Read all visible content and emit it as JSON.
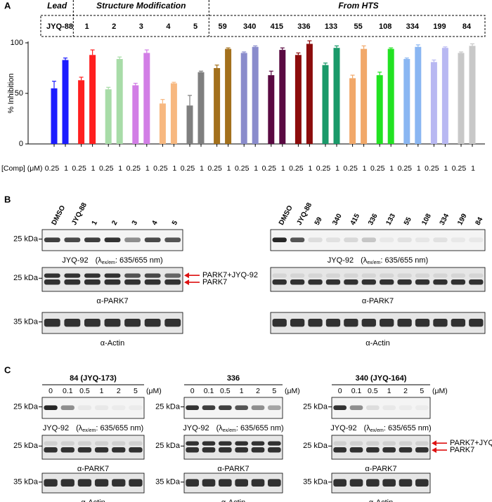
{
  "chart_data": {
    "type": "bar",
    "panel_label": "A",
    "group_labels": [
      {
        "label": "Lead",
        "color": "#000000"
      },
      {
        "label": "Structure Modification",
        "color": "#8577e0"
      },
      {
        "label": "From HTS",
        "color": "#f07ee0"
      }
    ],
    "categories": [
      "JYQ-88",
      "1",
      "2",
      "3",
      "4",
      "5",
      "59",
      "340",
      "415",
      "336",
      "133",
      "55",
      "108",
      "334",
      "199",
      "84"
    ],
    "colors": [
      "#1c1cff",
      "#ff1f1f",
      "#a8dca8",
      "#d27ee6",
      "#f7b880",
      "#7f7f7f",
      "#a3701c",
      "#8a8ccc",
      "#5a0a42",
      "#8c0c0c",
      "#1a9a6a",
      "#f1a86a",
      "#22e222",
      "#8ab6f2",
      "#b8b8f2",
      "#c8c8c8"
    ],
    "series": [
      {
        "name": "0.25",
        "values": [
          55,
          63,
          54,
          58,
          40,
          38,
          75,
          90,
          68,
          88,
          78,
          65,
          68,
          84,
          81,
          90
        ],
        "errors": [
          7,
          3,
          2,
          2,
          4,
          10,
          3,
          1,
          4,
          2,
          2,
          3,
          3,
          1,
          2,
          1
        ]
      },
      {
        "name": "1",
        "values": [
          83,
          88,
          84,
          90,
          60,
          71,
          94,
          96,
          93,
          99,
          95,
          94,
          94,
          96,
          95,
          97
        ],
        "errors": [
          2,
          5,
          2,
          3,
          1,
          1,
          1,
          1,
          2,
          3,
          2,
          3,
          1,
          2,
          1,
          2
        ]
      }
    ],
    "ylim": [
      0,
      100
    ],
    "yticks": [
      0,
      50,
      100
    ],
    "ylabel": "% Inhibition",
    "xlabel": "[Comp] (μM)"
  },
  "blot_rows": [
    {
      "marker": "25 kDa",
      "caption": {
        "reagent": "JYQ-92",
        "open": "(λ",
        "sub": "ex/em",
        "close": ": 635/655 nm)"
      }
    },
    {
      "marker": "25 kDa",
      "caption": "α-PARK7"
    },
    {
      "marker": "35 kDa",
      "caption": "α-Actin"
    }
  ],
  "arrows": [
    "PARK7+JYQ-92",
    "PARK7"
  ],
  "panel_b": {
    "label": "B",
    "blots": [
      {
        "lanes": [
          "DMSO",
          "JYQ-88",
          "1",
          "2",
          "3",
          "4",
          "5"
        ]
      },
      {
        "lanes": [
          "DMSO",
          "JYQ-88",
          "59",
          "340",
          "415",
          "336",
          "133",
          "55",
          "108",
          "334",
          "199",
          "84"
        ]
      }
    ]
  },
  "panel_c": {
    "label": "C",
    "unit": "(μM)",
    "lanes": [
      "0",
      "0.1",
      "0.5",
      "1",
      "2",
      "5"
    ],
    "blots": [
      {
        "title": "84 (JYQ-173)"
      },
      {
        "title": "336"
      },
      {
        "title": "340 (JYQ-164)"
      }
    ]
  }
}
